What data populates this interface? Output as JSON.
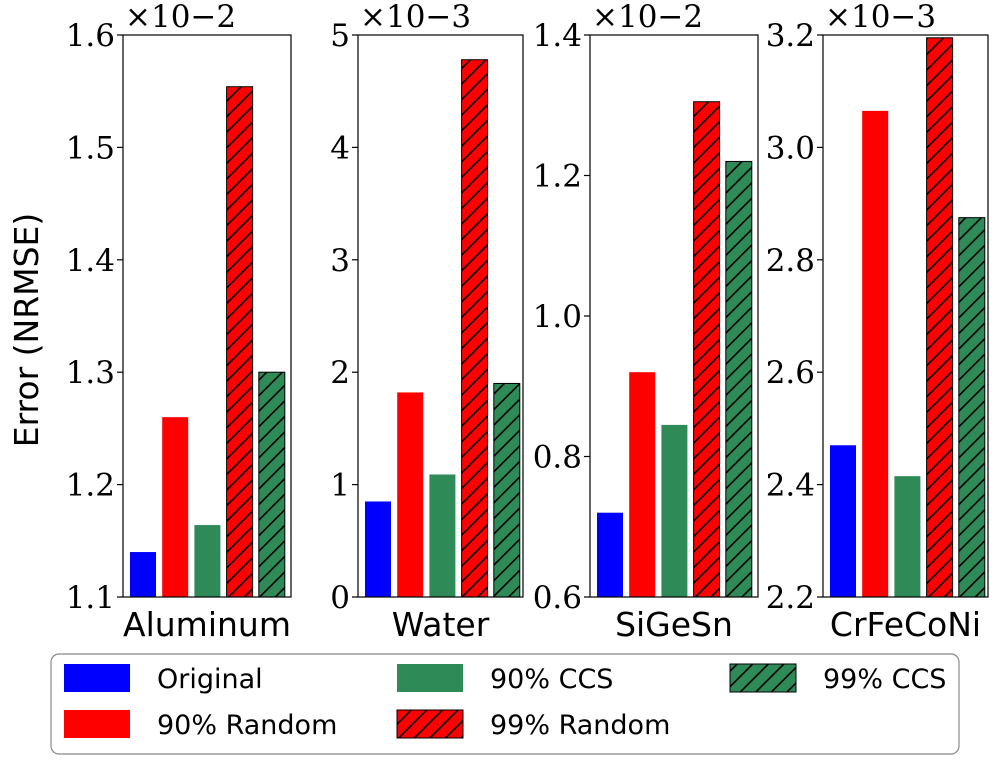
{
  "chart_data": [
    {
      "type": "bar",
      "title": "Aluminum",
      "ylabel": "Error (NRMSE)",
      "ylim": [
        1.1,
        1.6
      ],
      "yticks": [
        1.1,
        1.2,
        1.3,
        1.4,
        1.5,
        1.6
      ],
      "ytick_labels": [
        "1.1",
        "1.2",
        "1.3",
        "1.4",
        "1.5",
        "1.6"
      ],
      "scale_label": "×10−2",
      "categories": [
        "Original",
        "90% Random",
        "90% CCS",
        "99% Random",
        "99% CCS"
      ],
      "values": [
        1.14,
        1.26,
        1.164,
        1.554,
        1.3
      ]
    },
    {
      "type": "bar",
      "title": "Water",
      "ylim": [
        0,
        5
      ],
      "yticks": [
        0,
        1,
        2,
        3,
        4,
        5
      ],
      "ytick_labels": [
        "0",
        "1",
        "2",
        "3",
        "4",
        "5"
      ],
      "scale_label": "×10−3",
      "categories": [
        "Original",
        "90% Random",
        "90% CCS",
        "99% Random",
        "99% CCS"
      ],
      "values": [
        0.85,
        1.82,
        1.09,
        4.78,
        1.9
      ]
    },
    {
      "type": "bar",
      "title": "SiGeSn",
      "ylim": [
        0.6,
        1.4
      ],
      "yticks": [
        0.6,
        0.8,
        1.0,
        1.2,
        1.4
      ],
      "ytick_labels": [
        "0.6",
        "0.8",
        "1.0",
        "1.2",
        "1.4"
      ],
      "scale_label": "×10−2",
      "categories": [
        "Original",
        "90% Random",
        "90% CCS",
        "99% Random",
        "99% CCS"
      ],
      "values": [
        0.72,
        0.92,
        0.845,
        1.305,
        1.22
      ]
    },
    {
      "type": "bar",
      "title": "CrFeCoNi",
      "ylim": [
        2.2,
        3.2
      ],
      "yticks": [
        2.2,
        2.4,
        2.6,
        2.8,
        3.0,
        3.2
      ],
      "ytick_labels": [
        "2.2",
        "2.4",
        "2.6",
        "2.8",
        "3.0",
        "3.2"
      ],
      "scale_label": "×10−3",
      "categories": [
        "Original",
        "90% Random",
        "90% CCS",
        "99% Random",
        "99% CCS"
      ],
      "values": [
        2.47,
        3.065,
        2.415,
        3.195,
        2.875
      ]
    }
  ],
  "legend": {
    "items": [
      {
        "label": "Original",
        "color": "#0000ff",
        "hatched": false
      },
      {
        "label": "90% CCS",
        "color": "#2e8b57",
        "hatched": false
      },
      {
        "label": "99% CCS",
        "color": "#2e8b57",
        "hatched": true
      },
      {
        "label": "90% Random",
        "color": "#ff0000",
        "hatched": false
      },
      {
        "label": "99% Random",
        "color": "#ff0000",
        "hatched": true
      }
    ]
  },
  "series_styles": [
    {
      "color": "#0000ff",
      "hatched": false
    },
    {
      "color": "#ff0000",
      "hatched": false
    },
    {
      "color": "#2e8b57",
      "hatched": false
    },
    {
      "color": "#ff0000",
      "hatched": true
    },
    {
      "color": "#2e8b57",
      "hatched": true
    }
  ],
  "ylabel": "Error (NRMSE)"
}
